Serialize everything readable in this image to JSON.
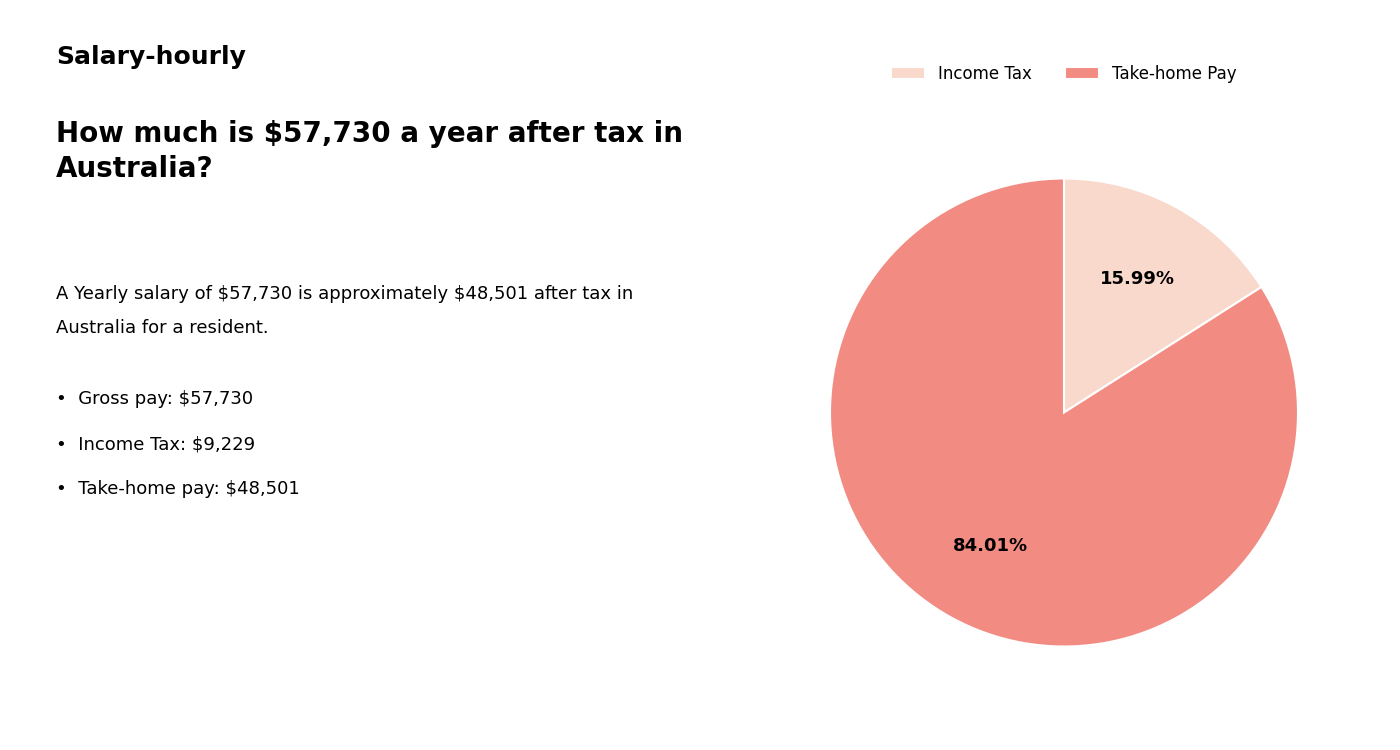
{
  "chart_data": {
    "type": "pie",
    "title": "How much is $57,730 a year after tax in\nAustralia?",
    "categories": [
      "Income Tax",
      "Take-home Pay"
    ],
    "values": [
      15.99,
      84.01
    ],
    "value_labels": [
      "15.99%",
      "84.01%"
    ],
    "colors": [
      "#f9d9cc",
      "#f28b82"
    ],
    "data_labels": true,
    "legend": "upper center",
    "annotations": [
      "Salary-hourly",
      "A Yearly salary of $57,730 is approximately $48,501 after tax in",
      "Australia for a resident.",
      "•  Gross pay: $57,730",
      "•  Income Tax: $9,229",
      "•  Take-home pay: $48,501"
    ]
  }
}
